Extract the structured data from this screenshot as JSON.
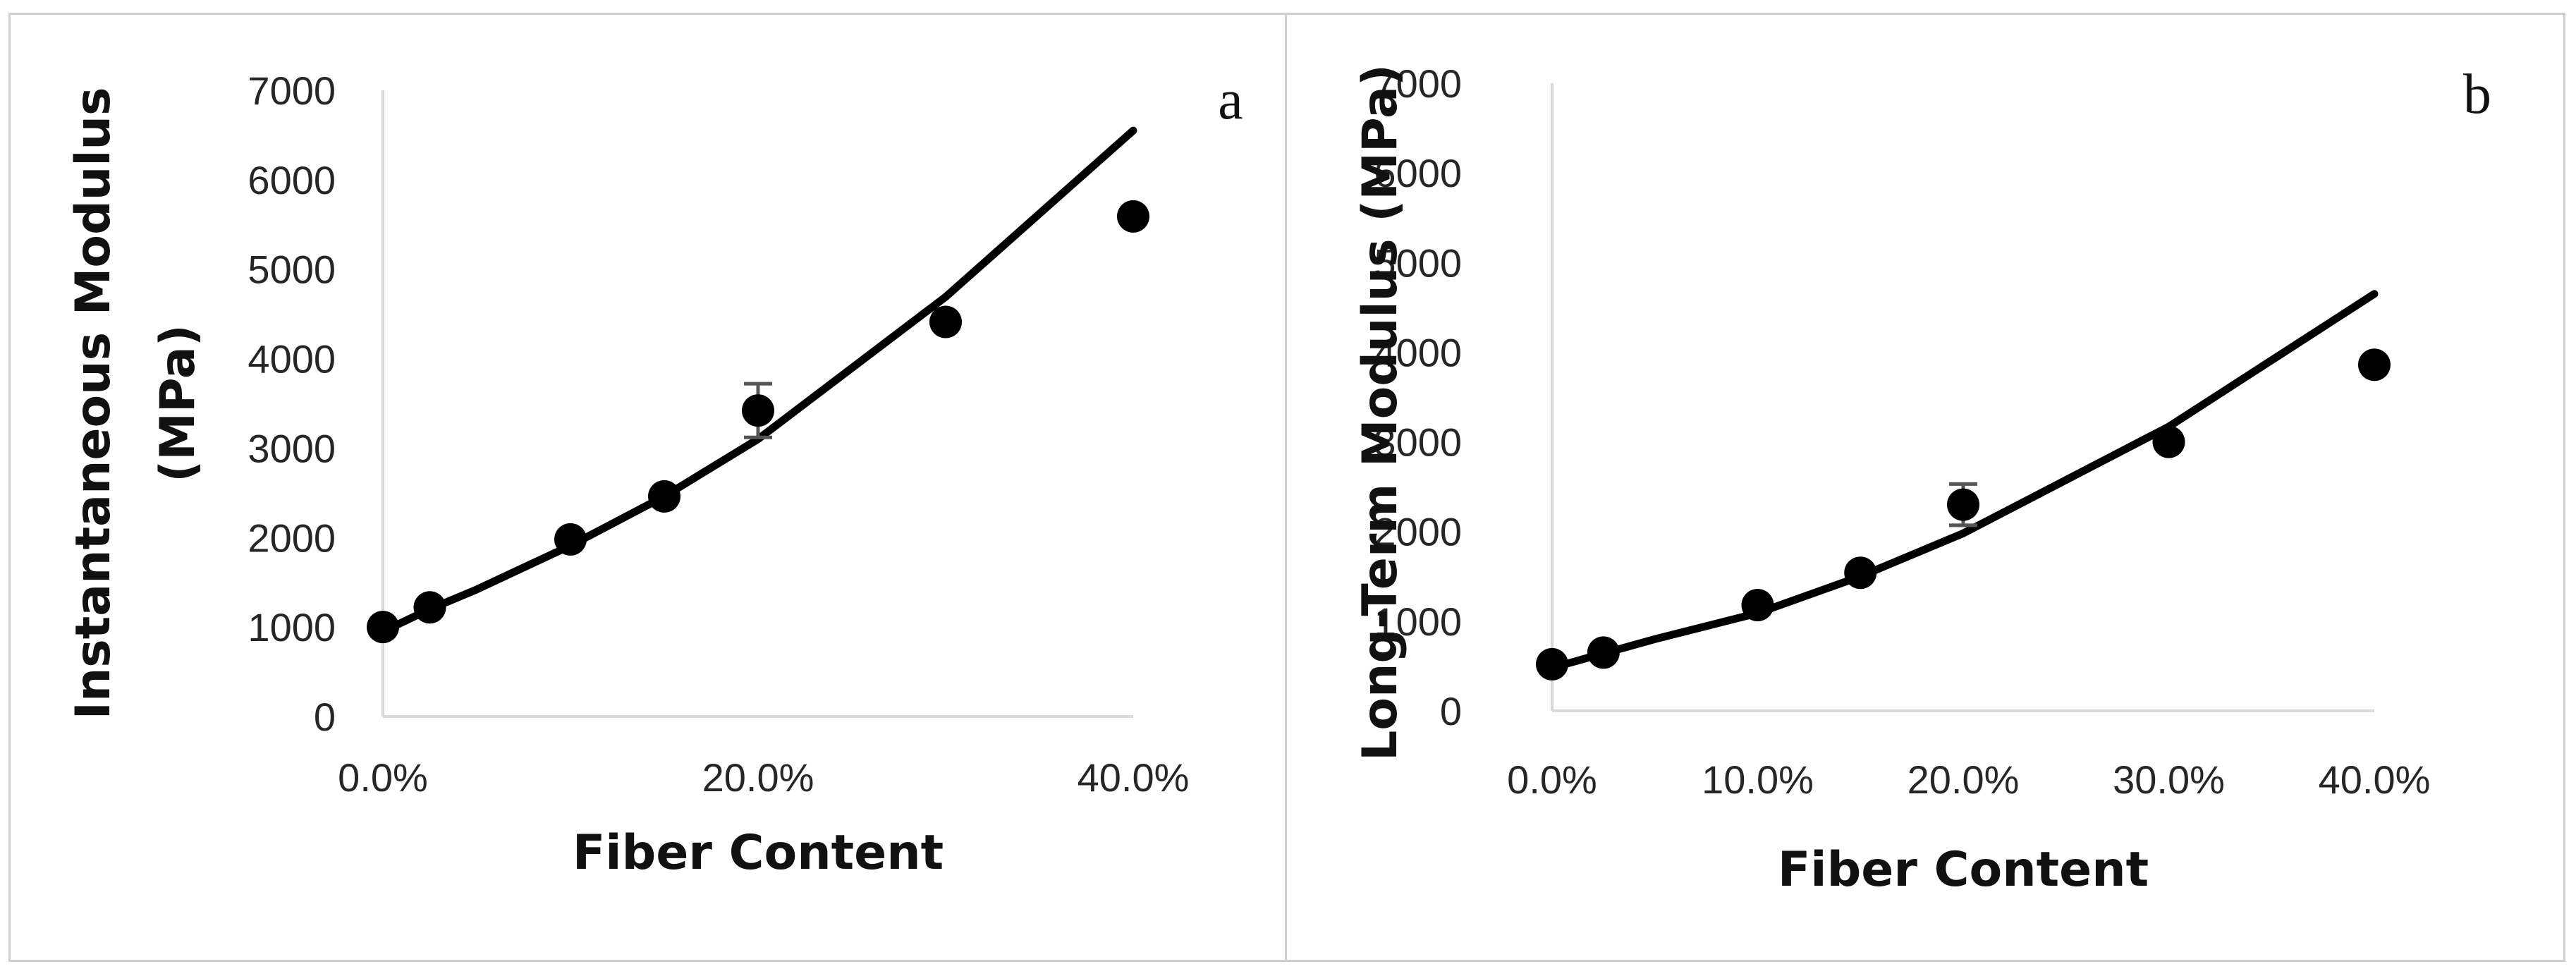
{
  "chart_data": [
    {
      "type": "scatter",
      "panel_label": "a",
      "xlabel": "Fiber Content",
      "ylabel": [
        "Instantaneous Modulus",
        "(MPa)"
      ],
      "xlim": [
        0,
        40
      ],
      "ylim": [
        0,
        7000
      ],
      "x_ticks": [
        0,
        20,
        40
      ],
      "x_tick_labels": [
        "0.0%",
        "20.0%",
        "40.0%"
      ],
      "y_ticks": [
        0,
        1000,
        2000,
        3000,
        4000,
        5000,
        6000,
        7000
      ],
      "y_tick_labels": [
        "0",
        "1000",
        "2000",
        "3000",
        "4000",
        "5000",
        "6000",
        "7000"
      ],
      "grid": false,
      "series": [
        {
          "kind": "points",
          "x": [
            0,
            2.5,
            10,
            15,
            20,
            30,
            40
          ],
          "y": [
            1000,
            1220,
            1980,
            2460,
            3420,
            4410,
            5590
          ],
          "error": [
            0,
            0,
            0,
            0,
            300,
            0,
            0
          ]
        },
        {
          "kind": "line",
          "x": [
            0,
            2.5,
            5,
            10,
            15,
            20,
            30,
            40
          ],
          "y": [
            950,
            1200,
            1420,
            1910,
            2460,
            3100,
            4690,
            6550
          ]
        }
      ],
      "colors": {
        "marker": "#000000",
        "line": "#000000",
        "axis": "#d9d9d9",
        "error_bar": "#555555"
      }
    },
    {
      "type": "scatter",
      "panel_label": "b",
      "xlabel": "Fiber Content",
      "ylabel": [
        "Long-Term Modulus (MPa)"
      ],
      "xlim": [
        0,
        40
      ],
      "ylim": [
        0,
        7000
      ],
      "x_ticks": [
        0,
        10,
        20,
        30,
        40
      ],
      "x_tick_labels": [
        "0.0%",
        "10.0%",
        "20.0%",
        "30.0%",
        "40.0%"
      ],
      "y_ticks": [
        0,
        1000,
        2000,
        3000,
        4000,
        5000,
        6000,
        7000
      ],
      "y_tick_labels": [
        "0",
        "1000",
        "2000",
        "3000",
        "4000",
        "5000",
        "6000",
        "7000"
      ],
      "grid": false,
      "series": [
        {
          "kind": "points",
          "x": [
            0,
            2.5,
            10,
            15,
            20,
            30,
            40
          ],
          "y": [
            520,
            650,
            1180,
            1540,
            2300,
            3000,
            3860
          ],
          "error": [
            0,
            0,
            0,
            0,
            230,
            0,
            0
          ]
        },
        {
          "kind": "line",
          "x": [
            0,
            2.5,
            5,
            10,
            15,
            20,
            30,
            40
          ],
          "y": [
            480,
            640,
            800,
            1090,
            1500,
            1980,
            3170,
            4650
          ]
        }
      ],
      "colors": {
        "marker": "#000000",
        "line": "#000000",
        "axis": "#d9d9d9",
        "error_bar": "#555555"
      }
    }
  ]
}
